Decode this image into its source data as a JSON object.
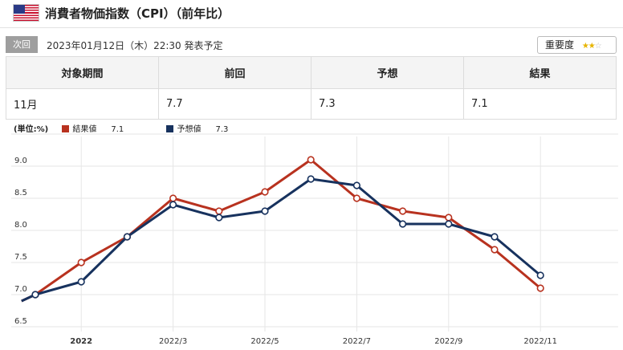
{
  "header": {
    "title": "消費者物価指数（CPI）（前年比）",
    "flag_icon": "us-flag-icon"
  },
  "next_release": {
    "badge": "次回",
    "datetime": "2023年01月12日（木）22:30 発表予定"
  },
  "importance": {
    "label": "重要度",
    "stars_on": "★★",
    "stars_off": "☆",
    "rating": 2,
    "max": 3
  },
  "summary_table": {
    "headers": [
      "対象期間",
      "前回",
      "予想",
      "結果"
    ],
    "row": [
      "11月",
      "7.7",
      "7.3",
      "7.1"
    ]
  },
  "legend": {
    "unit": "(単位:%)",
    "result_label": "結果値",
    "result_value": "7.1",
    "forecast_label": "予想値",
    "forecast_value": "7.3"
  },
  "colors": {
    "result": "#b8321f",
    "forecast": "#17325e",
    "grid": "#e6e6e6"
  },
  "chart_data": {
    "type": "line",
    "x_tick_labels": [
      "2022",
      "2022/3",
      "2022/5",
      "2022/7",
      "2022/9",
      "2022/11"
    ],
    "x_tick_indices": [
      1,
      3,
      5,
      7,
      9,
      11
    ],
    "y_ticks": [
      "6.5",
      "7.0",
      "7.5",
      "8.0",
      "8.5",
      "9.0"
    ],
    "ylim": [
      6.5,
      9.5
    ],
    "grid": true,
    "legend_position": "top-left",
    "series": [
      {
        "name": "結果値",
        "color": "#b8321f",
        "points": [
          [
            -0.3,
            6.9
          ],
          [
            0,
            7.0
          ],
          [
            1,
            7.5
          ],
          [
            2,
            7.9
          ],
          [
            3,
            8.5
          ],
          [
            4,
            8.3
          ],
          [
            5,
            8.6
          ],
          [
            6,
            9.1
          ],
          [
            7,
            8.5
          ],
          [
            8,
            8.3
          ],
          [
            9,
            8.2
          ],
          [
            10,
            7.7
          ],
          [
            11,
            7.1
          ]
        ]
      },
      {
        "name": "予想値",
        "color": "#17325e",
        "points": [
          [
            -0.3,
            6.9
          ],
          [
            0,
            7.0
          ],
          [
            1,
            7.2
          ],
          [
            2,
            7.9
          ],
          [
            3,
            8.4
          ],
          [
            4,
            8.2
          ],
          [
            5,
            8.3
          ],
          [
            6,
            8.8
          ],
          [
            7,
            8.7
          ],
          [
            8,
            8.1
          ],
          [
            9,
            8.1
          ],
          [
            10,
            7.9
          ],
          [
            11,
            7.3
          ]
        ]
      }
    ]
  }
}
